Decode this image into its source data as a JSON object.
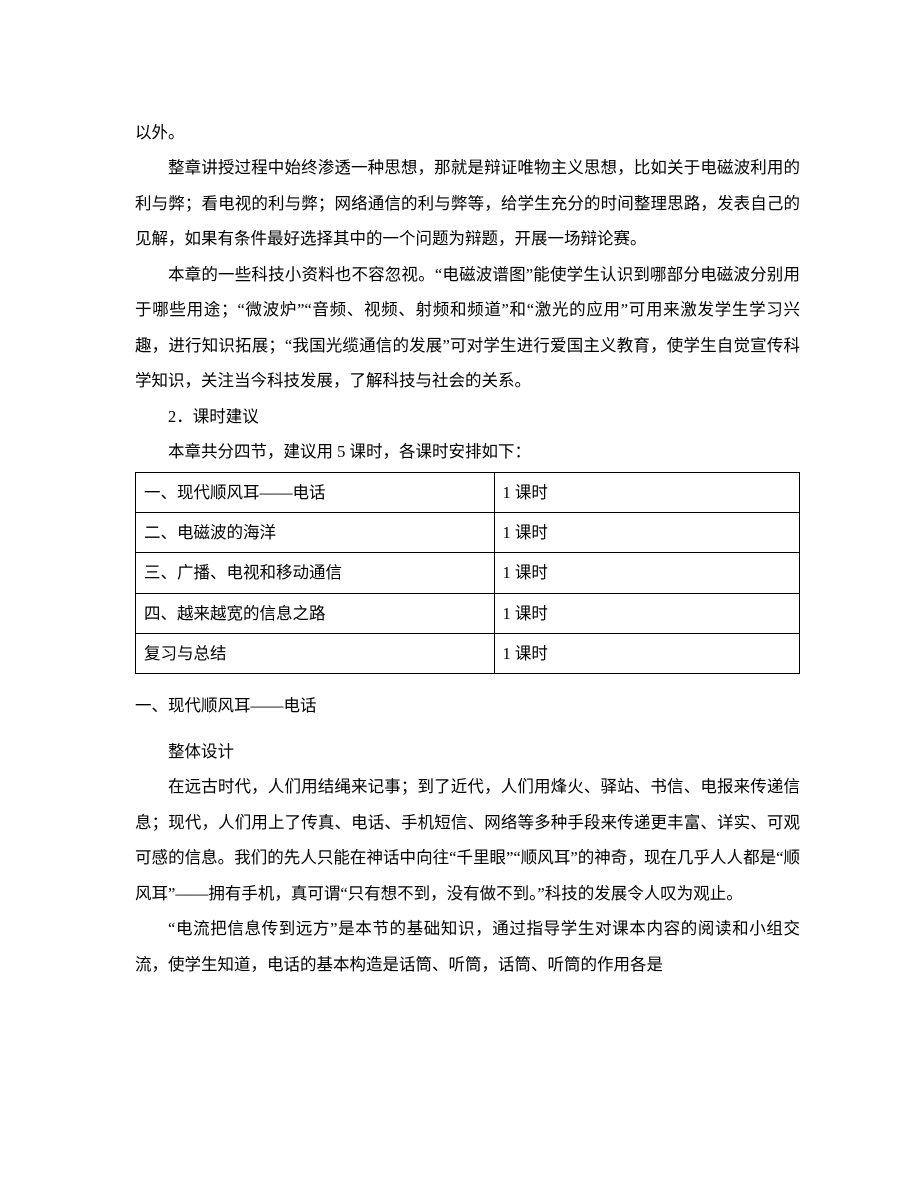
{
  "p0": "以外。",
  "p1": "整章讲授过程中始终渗透一种思想，那就是辩证唯物主义思想，比如关于电磁波利用的利与弊；看电视的利与弊；网络通信的利与弊等，给学生充分的时间整理思路，发表自己的见解，如果有条件最好选择其中的一个问题为辩题，开展一场辩论赛。",
  "p2": "本章的一些科技小资料也不容忽视。“电磁波谱图”能使学生认识到哪部分电磁波分别用于哪些用途；“微波炉”“音频、视频、射频和频道”和“激光的应用”可用来激发学生学习兴趣，进行知识拓展；“我国光缆通信的发展”可对学生进行爱国主义教育，使学生自觉宣传科学知识，关注当今科技发展，了解科技与社会的关系。",
  "p3": "2．课时建议",
  "p4": "本章共分四节，建议用 5 课时，各课时安排如下：",
  "table": {
    "rows": [
      {
        "c1": "一、现代顺风耳——电话",
        "c2": "1 课时"
      },
      {
        "c1": "二、电磁波的海洋",
        "c2": "1 课时"
      },
      {
        "c1": "三、广播、电视和移动通信",
        "c2": "1 课时"
      },
      {
        "c1": "四、越来越宽的信息之路",
        "c2": "1 课时"
      },
      {
        "c1": "复习与总结",
        "c2": "1 课时"
      }
    ]
  },
  "h1": "一、现代顺风耳——电话",
  "p5": "整体设计",
  "p6": "在远古时代，人们用结绳来记事；到了近代，人们用烽火、驿站、书信、电报来传递信息；现代，人们用上了传真、电话、手机短信、网络等多种手段来传递更丰富、详实、可观可感的信息。我们的先人只能在神话中向往“千里眼”“顺风耳”的神奇，现在几乎人人都是“顺风耳”——拥有手机，真可谓“只有想不到，没有做不到。”科技的发展令人叹为观止。",
  "p7": "“电流把信息传到远方”是本节的基础知识，通过指导学生对课本内容的阅读和小组交流，使学生知道，电话的基本构造是话筒、听筒，话筒、听筒的作用各是"
}
